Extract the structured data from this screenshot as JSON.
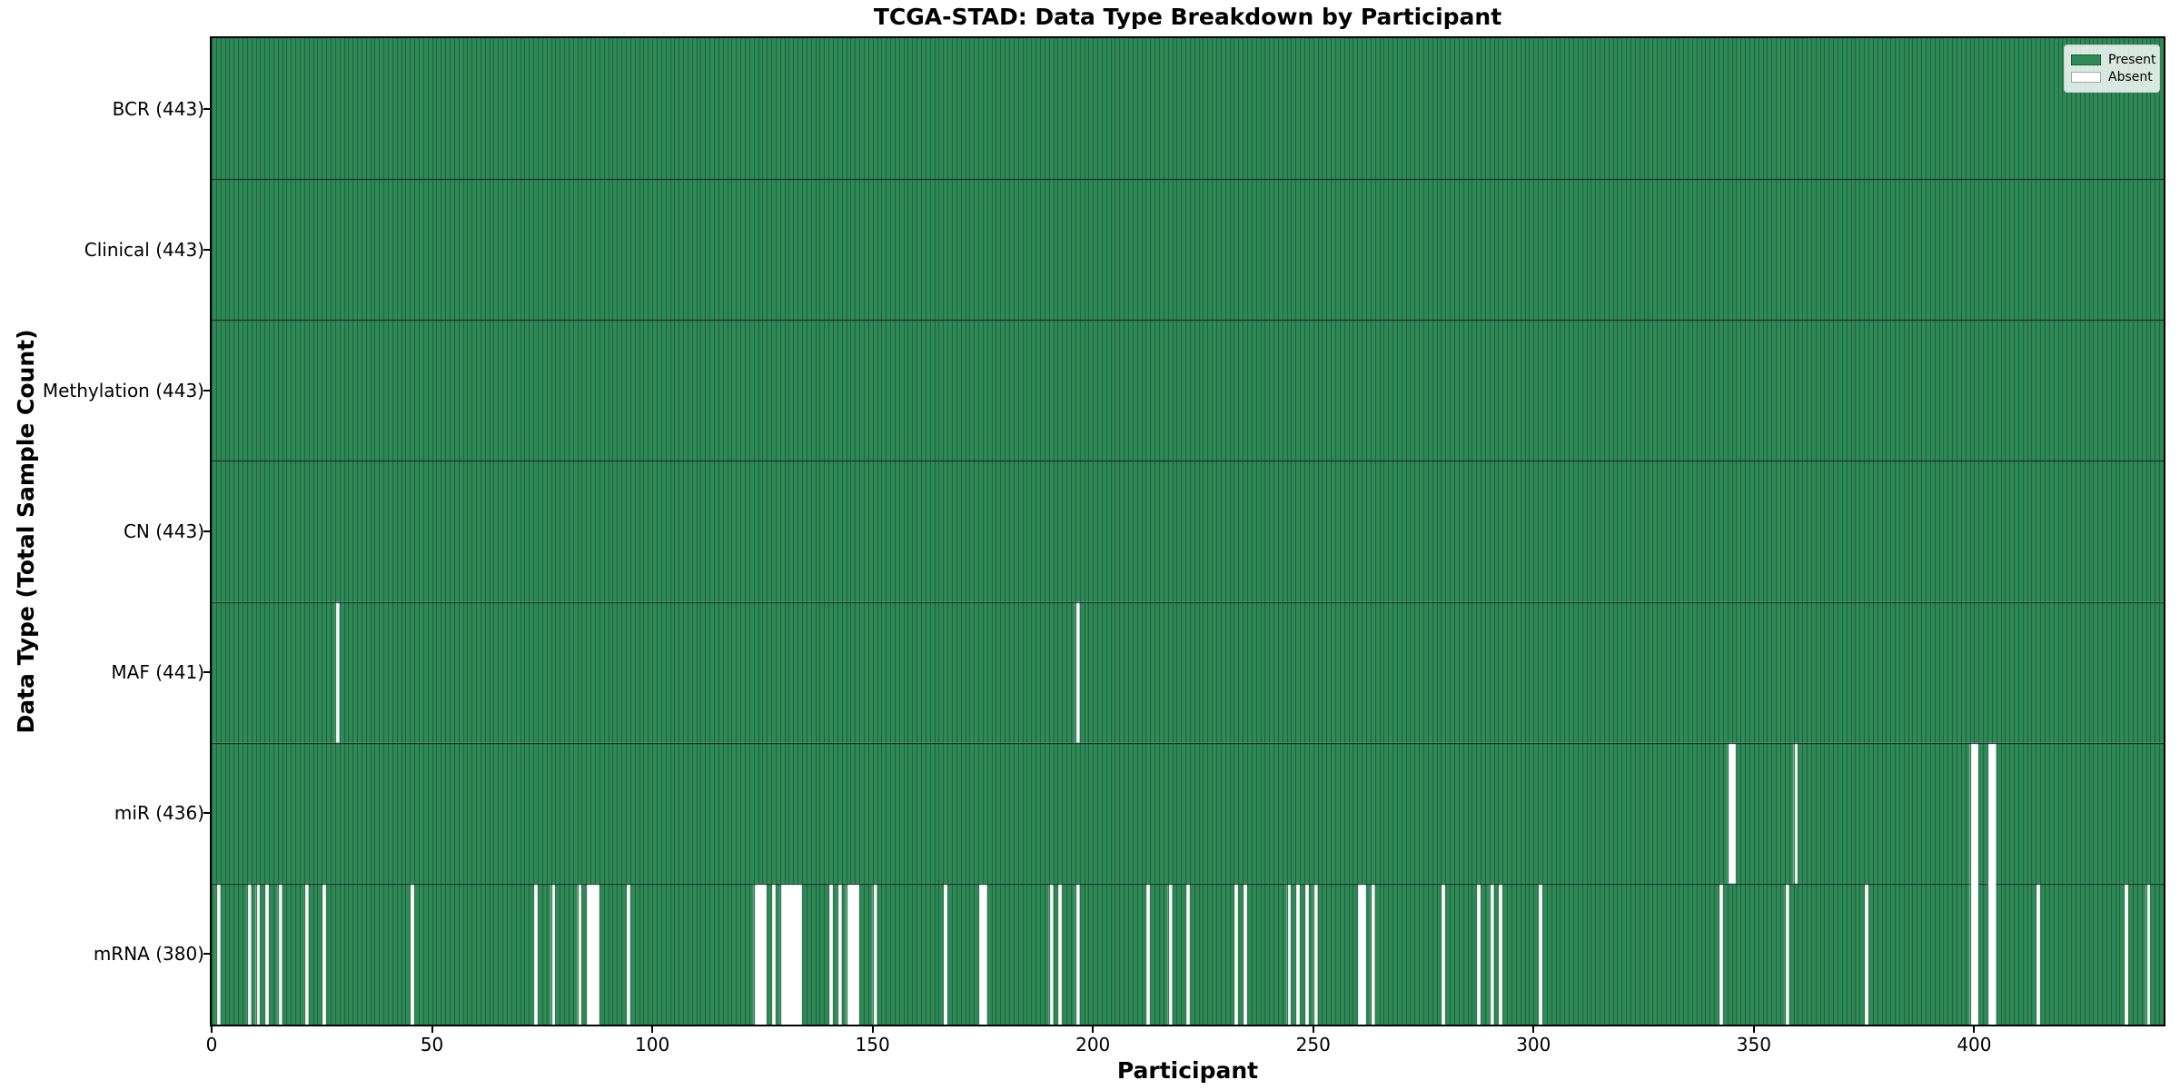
{
  "chart_data": {
    "type": "heatmap",
    "title": "TCGA-STAD: Data Type Breakdown by Participant",
    "xlabel": "Participant",
    "ylabel": "Data Type (Total Sample Count)",
    "x_ticks": [
      0,
      50,
      100,
      150,
      200,
      250,
      300,
      350,
      400
    ],
    "x_range": [
      0,
      443
    ],
    "n_participants": 443,
    "grid": false,
    "legend": {
      "position": "upper right",
      "entries": [
        {
          "label": "Present",
          "color": "#2e8b57"
        },
        {
          "label": "Absent",
          "color": "#ffffff"
        }
      ]
    },
    "colors": {
      "present": "#2e8b57",
      "absent": "#ffffff",
      "bar_edge": "#1d5c3b",
      "row_separator": "#1a1a1a",
      "background": "#ffffff"
    },
    "rows": [
      {
        "label": "BCR (443)",
        "name": "BCR",
        "total": 443,
        "absent_participants": []
      },
      {
        "label": "Clinical (443)",
        "name": "Clinical",
        "total": 443,
        "absent_participants": []
      },
      {
        "label": "Methylation (443)",
        "name": "Methylation",
        "total": 443,
        "absent_participants": []
      },
      {
        "label": "CN (443)",
        "name": "CN",
        "total": 443,
        "absent_participants": []
      },
      {
        "label": "MAF (441)",
        "name": "MAF",
        "total": 441,
        "absent_participants": [
          28,
          196
        ]
      },
      {
        "label": "miR (436)",
        "name": "miR",
        "total": 436,
        "absent_participants": [
          344,
          345,
          359,
          399,
          400,
          403,
          404
        ]
      },
      {
        "label": "mRNA (380)",
        "name": "mRNA",
        "total": 380,
        "absent_participants": [
          1,
          8,
          10,
          12,
          15,
          21,
          25,
          45,
          73,
          77,
          83,
          85,
          86,
          87,
          94,
          123,
          124,
          125,
          127,
          129,
          130,
          131,
          132,
          133,
          140,
          142,
          144,
          145,
          146,
          150,
          166,
          174,
          175,
          190,
          192,
          196,
          212,
          217,
          221,
          232,
          234,
          244,
          246,
          248,
          250,
          260,
          261,
          263,
          279,
          287,
          290,
          292,
          301,
          342,
          357,
          375,
          399,
          400,
          403,
          404,
          414,
          434,
          439
        ]
      }
    ]
  }
}
